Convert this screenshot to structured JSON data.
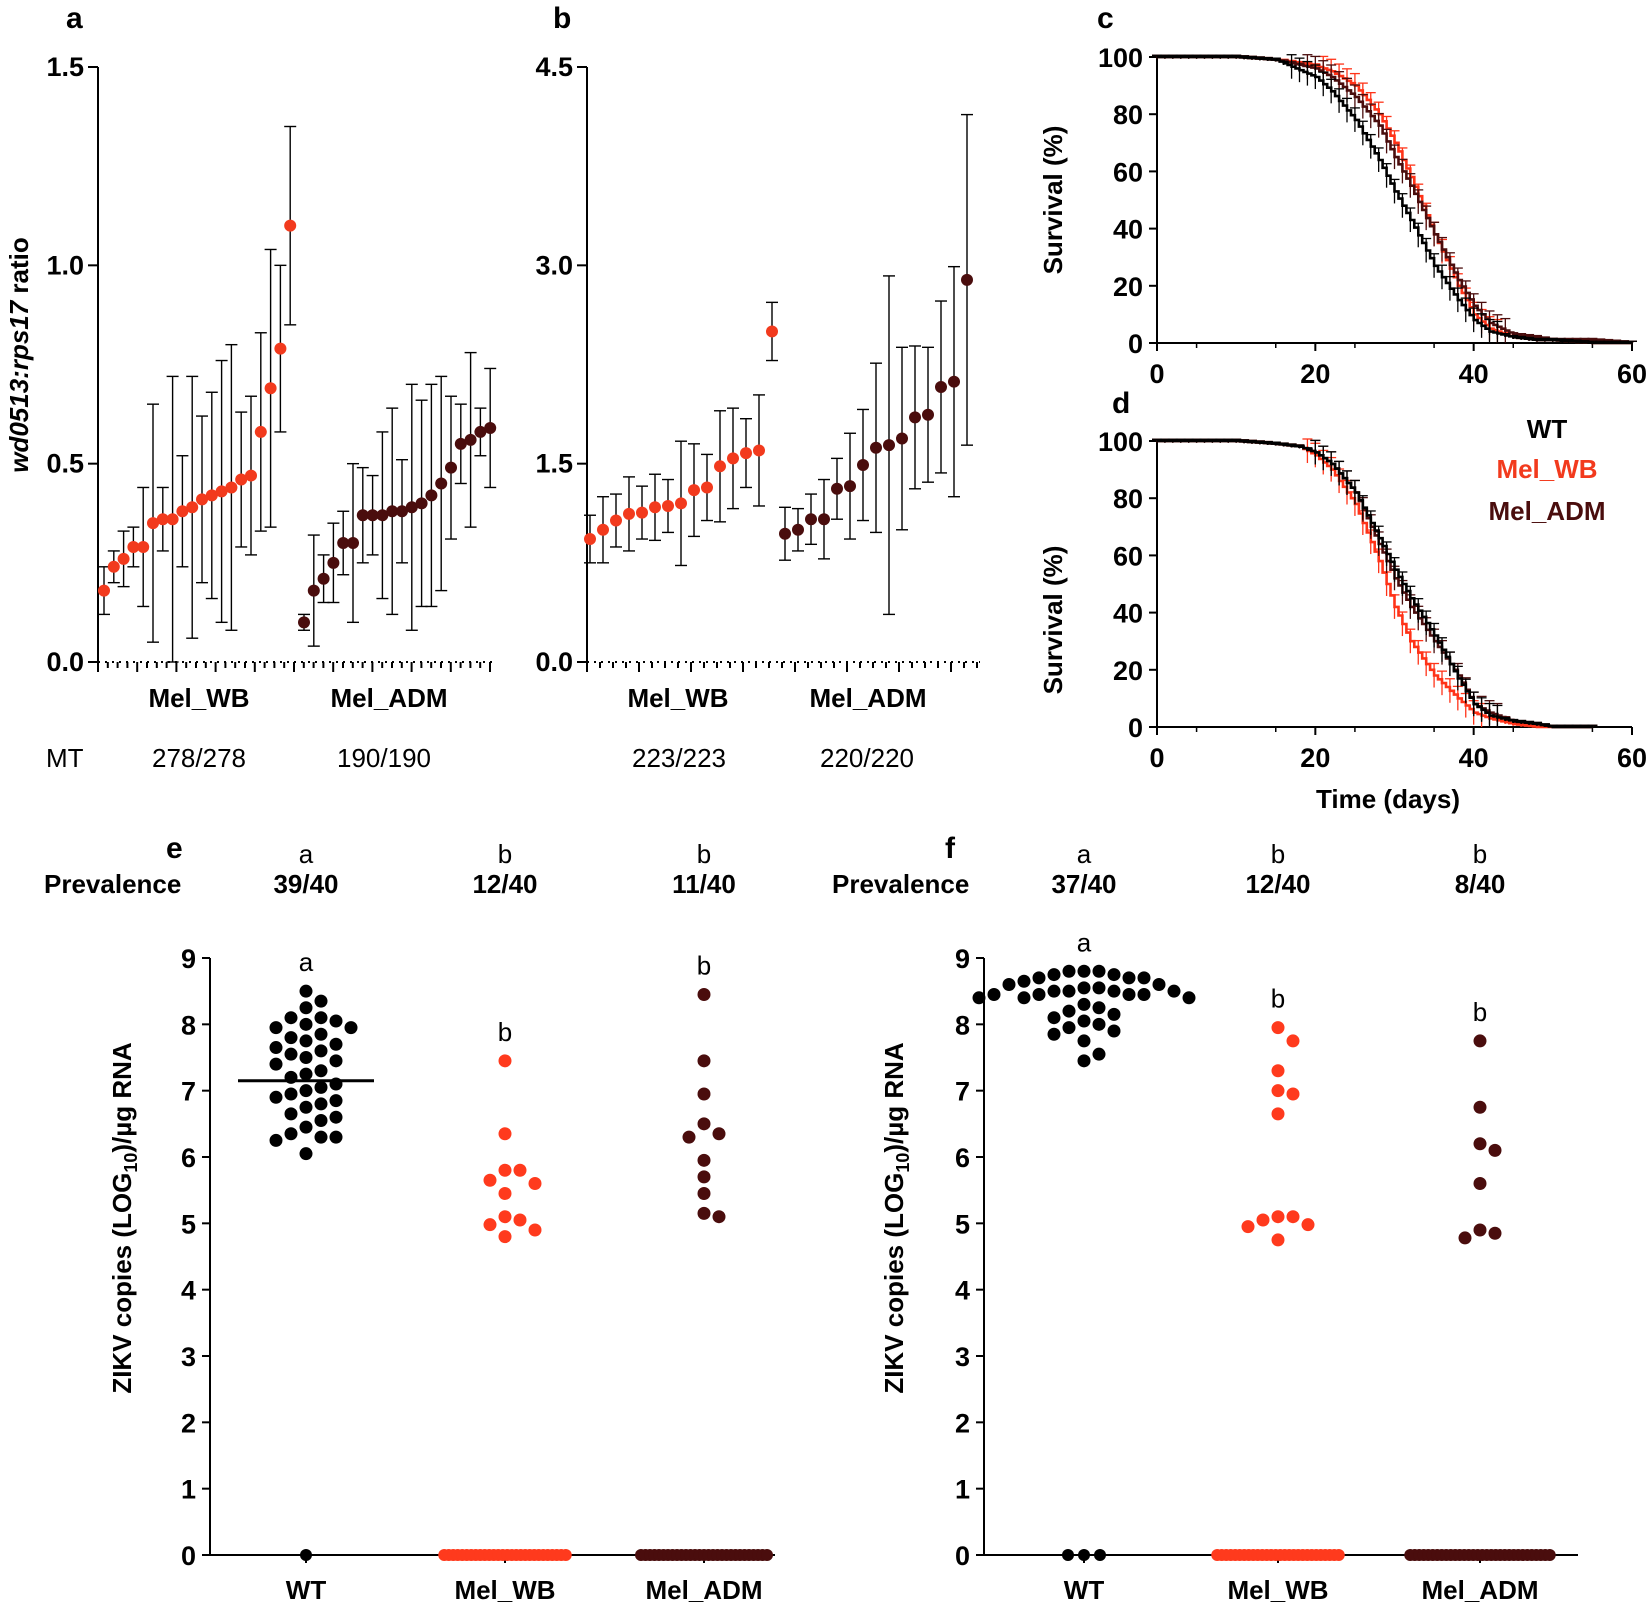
{
  "colors": {
    "WT": "#000000",
    "Mel_WB": "#f23a1d",
    "Mel_ADM": "#4a0d0d"
  },
  "chart_data": [
    {
      "panel": "a",
      "type": "scatter",
      "ylabel_italic": "wd0513:rps17",
      "ylabel_rest": " ratio",
      "ylim": [
        0,
        1.5
      ],
      "yticks": [
        "0.0",
        "0.5",
        "1.0",
        "1.5"
      ],
      "ytick_values": [
        0,
        0.5,
        1.0,
        1.5
      ],
      "row_label": "MT",
      "series": [
        {
          "name": "Mel_WB",
          "count": "278/278",
          "values": [
            0.18,
            0.24,
            0.26,
            0.29,
            0.29,
            0.35,
            0.36,
            0.36,
            0.38,
            0.39,
            0.41,
            0.42,
            0.43,
            0.44,
            0.46,
            0.47,
            0.58,
            0.69,
            0.79,
            1.1
          ],
          "err": [
            0.06,
            0.04,
            0.07,
            0.05,
            0.15,
            0.3,
            0.08,
            0.36,
            0.14,
            0.33,
            0.21,
            0.26,
            0.33,
            0.36,
            0.17,
            0.2,
            0.25,
            0.35,
            0.21,
            0.25
          ]
        },
        {
          "name": "Mel_ADM",
          "count": "190/190",
          "values": [
            0.1,
            0.18,
            0.21,
            0.25,
            0.3,
            0.3,
            0.37,
            0.37,
            0.37,
            0.38,
            0.38,
            0.39,
            0.4,
            0.42,
            0.45,
            0.49,
            0.55,
            0.56,
            0.58,
            0.59
          ],
          "err": [
            0.02,
            0.14,
            0.06,
            0.1,
            0.08,
            0.2,
            0.12,
            0.1,
            0.21,
            0.26,
            0.13,
            0.31,
            0.26,
            0.28,
            0.27,
            0.18,
            0.1,
            0.22,
            0.06,
            0.15
          ]
        }
      ]
    },
    {
      "panel": "b",
      "type": "scatter",
      "ylim": [
        0,
        4.5
      ],
      "yticks": [
        "0.0",
        "1.5",
        "3.0",
        "4.5"
      ],
      "ytick_values": [
        0,
        1.5,
        3.0,
        4.5
      ],
      "series": [
        {
          "name": "Mel_WB",
          "count": "223/223",
          "values": [
            0.93,
            1.0,
            1.07,
            1.12,
            1.13,
            1.17,
            1.18,
            1.2,
            1.3,
            1.32,
            1.48,
            1.54,
            1.58,
            1.6,
            2.5
          ],
          "err": [
            0.18,
            0.25,
            0.2,
            0.28,
            0.2,
            0.25,
            0.2,
            0.47,
            0.35,
            0.25,
            0.42,
            0.38,
            0.26,
            0.42,
            0.22
          ]
        },
        {
          "name": "Mel_ADM",
          "count": "220/220",
          "values": [
            0.97,
            1.0,
            1.08,
            1.08,
            1.31,
            1.33,
            1.49,
            1.62,
            1.64,
            1.69,
            1.85,
            1.87,
            2.08,
            2.12,
            2.89
          ],
          "err": [
            0.2,
            0.16,
            0.19,
            0.3,
            0.23,
            0.4,
            0.42,
            0.64,
            1.28,
            0.69,
            0.54,
            0.51,
            0.65,
            0.87,
            1.25
          ]
        }
      ]
    },
    {
      "panel": "c",
      "type": "line",
      "ylabel": "Survival (%)",
      "xlim": [
        0,
        60
      ],
      "ylim": [
        0,
        100
      ],
      "xticks": [
        "0",
        "20",
        "40",
        "60"
      ],
      "xtick_values": [
        0,
        20,
        40,
        60
      ],
      "yticks": [
        "0",
        "20",
        "40",
        "60",
        "80",
        "100"
      ],
      "ytick_values": [
        0,
        20,
        40,
        60,
        80,
        100
      ],
      "series": [
        {
          "name": "WT",
          "x": [
            0,
            10,
            15,
            20,
            22,
            25,
            28,
            30,
            32,
            35,
            38,
            40,
            42,
            45,
            48,
            50,
            55,
            60
          ],
          "y": [
            100,
            100,
            99,
            93,
            88,
            78,
            64,
            53,
            43,
            27,
            15,
            8,
            4,
            2,
            1,
            1,
            0,
            0
          ]
        },
        {
          "name": "Mel_WB",
          "x": [
            0,
            10,
            15,
            20,
            22,
            25,
            28,
            30,
            32,
            35,
            38,
            40,
            42,
            45,
            48,
            50,
            55,
            60
          ],
          "y": [
            100,
            100,
            99,
            97,
            95,
            90,
            80,
            70,
            58,
            38,
            20,
            10,
            5,
            2,
            1,
            1,
            0,
            0
          ]
        },
        {
          "name": "Mel_ADM",
          "x": [
            0,
            10,
            15,
            20,
            22,
            25,
            28,
            30,
            32,
            35,
            38,
            40,
            42,
            45,
            48,
            50,
            55,
            60
          ],
          "y": [
            100,
            100,
            99,
            96,
            93,
            86,
            76,
            65,
            55,
            38,
            22,
            13,
            7,
            3,
            2,
            1,
            1,
            0
          ]
        }
      ]
    },
    {
      "panel": "d",
      "type": "line",
      "ylabel": "Survival (%)",
      "xlabel": "Time (days)",
      "xlim": [
        0,
        60
      ],
      "ylim": [
        0,
        100
      ],
      "xticks": [
        "0",
        "20",
        "40",
        "60"
      ],
      "xtick_values": [
        0,
        20,
        40,
        60
      ],
      "yticks": [
        "0",
        "20",
        "40",
        "60",
        "80",
        "100"
      ],
      "ytick_values": [
        0,
        20,
        40,
        60,
        80,
        100
      ],
      "legend": [
        "WT",
        "Mel_WB",
        "Mel_ADM"
      ],
      "series": [
        {
          "name": "WT",
          "x": [
            0,
            10,
            15,
            18,
            20,
            22,
            25,
            28,
            30,
            32,
            35,
            38,
            40,
            42,
            45,
            48,
            50,
            55
          ],
          "y": [
            100,
            100,
            99,
            98,
            96,
            92,
            82,
            66,
            55,
            45,
            32,
            17,
            8,
            4,
            2,
            1,
            0,
            0
          ]
        },
        {
          "name": "Mel_WB",
          "x": [
            0,
            10,
            15,
            18,
            20,
            22,
            25,
            28,
            30,
            32,
            35,
            38,
            40,
            42,
            45,
            48,
            50,
            55
          ],
          "y": [
            100,
            100,
            99,
            98,
            95,
            90,
            78,
            58,
            42,
            30,
            18,
            10,
            5,
            3,
            1,
            0,
            0,
            0
          ]
        },
        {
          "name": "Mel_ADM",
          "x": [
            0,
            10,
            15,
            18,
            20,
            22,
            25,
            28,
            30,
            32,
            35,
            38,
            40,
            42,
            45,
            48,
            50,
            55
          ],
          "y": [
            100,
            100,
            99,
            98,
            96,
            92,
            82,
            64,
            52,
            42,
            30,
            18,
            8,
            5,
            2,
            1,
            0,
            0
          ]
        }
      ]
    },
    {
      "panel": "e",
      "type": "scatter",
      "ylabel_pre": "ZIKV copies (LOG",
      "ylabel_sub": "10",
      "ylabel_post": ")/µg RNA",
      "prevalence_label": "Prevalence",
      "ylim": [
        0,
        9
      ],
      "yticks": [
        "0",
        "1",
        "2",
        "3",
        "4",
        "5",
        "6",
        "7",
        "8",
        "9"
      ],
      "ytick_values": [
        0,
        1,
        2,
        3,
        4,
        5,
        6,
        7,
        8,
        9
      ],
      "categories": [
        "WT",
        "Mel_WB",
        "Mel_ADM"
      ],
      "prevalence": [
        "39/40",
        "12/40",
        "11/40"
      ],
      "letters": [
        "a",
        "b",
        "b"
      ],
      "median_WT": 7.15,
      "WT": [
        8.5,
        8.35,
        8.25,
        8.1,
        8.1,
        8.05,
        8.0,
        7.95,
        7.95,
        7.85,
        7.8,
        7.75,
        7.7,
        7.65,
        7.6,
        7.55,
        7.5,
        7.45,
        7.4,
        7.3,
        7.25,
        7.2,
        7.1,
        7.05,
        7.0,
        6.95,
        6.9,
        6.85,
        6.8,
        6.75,
        6.65,
        6.6,
        6.55,
        6.45,
        6.35,
        6.3,
        6.3,
        6.25,
        6.05
      ],
      "WT_zero": 1,
      "Mel_WB": [
        7.45,
        6.35,
        5.8,
        5.8,
        5.65,
        5.6,
        5.45,
        5.1,
        5.05,
        4.98,
        4.9,
        4.8
      ],
      "Mel_WB_zero": 28,
      "Mel_ADM": [
        8.45,
        7.45,
        6.95,
        6.5,
        6.35,
        6.3,
        5.95,
        5.7,
        5.45,
        5.15,
        5.1
      ],
      "Mel_ADM_zero": 29
    },
    {
      "panel": "f",
      "type": "scatter",
      "ylabel_pre": "ZIKV copies (LOG",
      "ylabel_sub": "10",
      "ylabel_post": ")/µg RNA",
      "prevalence_label": "Prevalence",
      "ylim": [
        0,
        9
      ],
      "yticks": [
        "0",
        "1",
        "2",
        "3",
        "4",
        "5",
        "6",
        "7",
        "8",
        "9"
      ],
      "ytick_values": [
        0,
        1,
        2,
        3,
        4,
        5,
        6,
        7,
        8,
        9
      ],
      "categories": [
        "WT",
        "Mel_WB",
        "Mel_ADM"
      ],
      "prevalence": [
        "37/40",
        "12/40",
        "8/40"
      ],
      "letters": [
        "a",
        "b",
        "b"
      ],
      "WT": [
        8.8,
        8.8,
        8.8,
        8.75,
        8.75,
        8.7,
        8.7,
        8.7,
        8.65,
        8.6,
        8.6,
        8.55,
        8.55,
        8.5,
        8.5,
        8.5,
        8.5,
        8.45,
        8.45,
        8.45,
        8.45,
        8.4,
        8.4,
        8.4,
        8.3,
        8.25,
        8.2,
        8.15,
        8.1,
        8.05,
        8.0,
        7.95,
        7.9,
        7.85,
        7.75,
        7.55,
        7.45
      ],
      "WT_zero": 3,
      "Mel_WB": [
        7.95,
        7.75,
        7.3,
        7.0,
        6.95,
        6.65,
        5.1,
        5.1,
        5.05,
        4.98,
        4.95,
        4.75
      ],
      "Mel_WB_zero": 28,
      "Mel_ADM": [
        7.75,
        6.75,
        6.2,
        6.1,
        5.6,
        4.9,
        4.85,
        4.78
      ],
      "Mel_ADM_zero": 32
    }
  ]
}
